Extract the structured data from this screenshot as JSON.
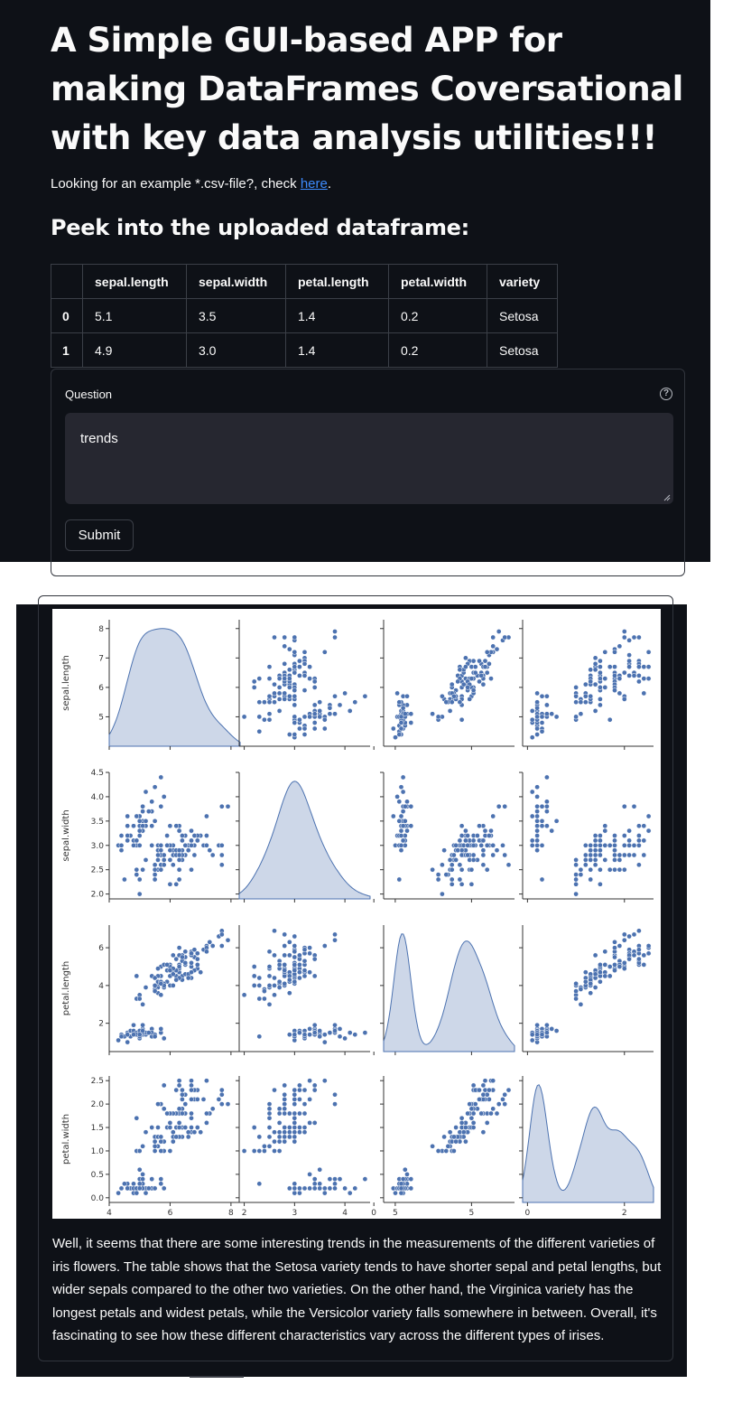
{
  "header": {
    "title": "A Simple GUI-based APP for making DataFrames Coversational with key data analysis utilities!!!",
    "example_text": "Looking for an example *.csv-file?, check ",
    "example_link": "here",
    "example_suffix": "."
  },
  "peek": {
    "heading": "Peek into the uploaded dataframe:",
    "columns": [
      "",
      "sepal.length",
      "sepal.width",
      "petal.length",
      "petal.width",
      "variety"
    ],
    "rows": [
      [
        "0",
        "5.1",
        "3.5",
        "1.4",
        "0.2",
        "Setosa"
      ],
      [
        "1",
        "4.9",
        "3.0",
        "1.4",
        "0.2",
        "Setosa"
      ]
    ]
  },
  "form": {
    "label": "Question",
    "help_icon": "question-circle-icon",
    "input_value": "trends",
    "submit_label": "Submit"
  },
  "answer": {
    "text": "Well, it seems that there are some interesting trends in the measurements of the different varieties of iris flowers. The table shows that the Setosa variety tends to have shorter sepal and petal lengths, but wider sepals compared to the other two varieties. On the other hand, the Virginica variety has the longest petals and widest petals, while the Versicolor variety falls somewhere in between. Overall, it's fascinating to see how these different characteristics vary across the different types of irises."
  },
  "colors": {
    "background": "#0e1117",
    "marker": "#4c72b0",
    "kde_fill": "#c8d3e6",
    "link": "#3d8bfd"
  },
  "chart_data": {
    "type": "scatter",
    "subtype": "pairplot",
    "variables": [
      "sepal.length",
      "sepal.width",
      "petal.length",
      "petal.width"
    ],
    "axis_labels": [
      "sepal.length",
      "sepal.width",
      "petal.length",
      "petal.width"
    ],
    "diagonal": "kde",
    "grid": false,
    "limits": [
      [
        4,
        8.3
      ],
      [
        1.9,
        4.5
      ],
      [
        0.5,
        7.2
      ],
      [
        -0.1,
        2.6
      ]
    ],
    "x_ticks": [
      [
        4,
        6,
        8
      ],
      [
        2,
        3,
        4,
        5
      ],
      [
        0,
        5
      ],
      [
        0,
        2
      ]
    ],
    "y_ticks": [
      [
        5,
        6,
        7,
        8
      ],
      [
        2.0,
        2.5,
        3.0,
        3.5,
        4.0,
        4.5
      ],
      [
        2,
        4,
        6
      ],
      [
        0.0,
        0.5,
        1.0,
        1.5,
        2.0,
        2.5
      ]
    ],
    "data": [
      [
        5.1,
        3.5,
        1.4,
        0.2
      ],
      [
        4.9,
        3.0,
        1.4,
        0.2
      ],
      [
        4.7,
        3.2,
        1.3,
        0.2
      ],
      [
        4.6,
        3.1,
        1.5,
        0.2
      ],
      [
        5.0,
        3.6,
        1.4,
        0.2
      ],
      [
        5.4,
        3.9,
        1.7,
        0.4
      ],
      [
        4.6,
        3.4,
        1.4,
        0.3
      ],
      [
        5.0,
        3.4,
        1.5,
        0.2
      ],
      [
        4.4,
        2.9,
        1.4,
        0.2
      ],
      [
        4.9,
        3.1,
        1.5,
        0.1
      ],
      [
        5.4,
        3.7,
        1.5,
        0.2
      ],
      [
        4.8,
        3.4,
        1.6,
        0.2
      ],
      [
        4.8,
        3.0,
        1.4,
        0.1
      ],
      [
        4.3,
        3.0,
        1.1,
        0.1
      ],
      [
        5.8,
        4.0,
        1.2,
        0.2
      ],
      [
        5.7,
        4.4,
        1.5,
        0.4
      ],
      [
        5.4,
        3.9,
        1.3,
        0.4
      ],
      [
        5.1,
        3.5,
        1.4,
        0.3
      ],
      [
        5.7,
        3.8,
        1.7,
        0.3
      ],
      [
        5.1,
        3.8,
        1.5,
        0.3
      ],
      [
        5.4,
        3.4,
        1.7,
        0.2
      ],
      [
        5.1,
        3.7,
        1.5,
        0.4
      ],
      [
        4.6,
        3.6,
        1.0,
        0.2
      ],
      [
        5.1,
        3.3,
        1.7,
        0.5
      ],
      [
        4.8,
        3.4,
        1.9,
        0.2
      ],
      [
        5.0,
        3.0,
        1.6,
        0.2
      ],
      [
        5.0,
        3.4,
        1.6,
        0.4
      ],
      [
        5.2,
        3.5,
        1.5,
        0.2
      ],
      [
        5.2,
        3.4,
        1.4,
        0.2
      ],
      [
        4.7,
        3.2,
        1.6,
        0.2
      ],
      [
        4.8,
        3.1,
        1.6,
        0.2
      ],
      [
        5.4,
        3.4,
        1.5,
        0.4
      ],
      [
        5.2,
        4.1,
        1.5,
        0.1
      ],
      [
        5.5,
        4.2,
        1.4,
        0.2
      ],
      [
        4.9,
        3.1,
        1.5,
        0.2
      ],
      [
        5.0,
        3.2,
        1.2,
        0.2
      ],
      [
        5.5,
        3.5,
        1.3,
        0.2
      ],
      [
        4.9,
        3.6,
        1.4,
        0.1
      ],
      [
        4.4,
        3.0,
        1.3,
        0.2
      ],
      [
        5.1,
        3.4,
        1.5,
        0.2
      ],
      [
        5.0,
        3.5,
        1.3,
        0.3
      ],
      [
        4.5,
        2.3,
        1.3,
        0.3
      ],
      [
        4.4,
        3.2,
        1.3,
        0.2
      ],
      [
        5.0,
        3.5,
        1.6,
        0.6
      ],
      [
        5.1,
        3.8,
        1.9,
        0.4
      ],
      [
        4.8,
        3.0,
        1.4,
        0.3
      ],
      [
        5.1,
        3.8,
        1.6,
        0.2
      ],
      [
        4.6,
        3.2,
        1.4,
        0.2
      ],
      [
        5.3,
        3.7,
        1.5,
        0.2
      ],
      [
        5.0,
        3.3,
        1.4,
        0.2
      ],
      [
        7.0,
        3.2,
        4.7,
        1.4
      ],
      [
        6.4,
        3.2,
        4.5,
        1.5
      ],
      [
        6.9,
        3.1,
        4.9,
        1.5
      ],
      [
        5.5,
        2.3,
        4.0,
        1.3
      ],
      [
        6.5,
        2.8,
        4.6,
        1.5
      ],
      [
        5.7,
        2.8,
        4.5,
        1.3
      ],
      [
        6.3,
        3.3,
        4.7,
        1.6
      ],
      [
        4.9,
        2.4,
        3.3,
        1.0
      ],
      [
        6.6,
        2.9,
        4.6,
        1.3
      ],
      [
        5.2,
        2.7,
        3.9,
        1.4
      ],
      [
        5.0,
        2.0,
        3.5,
        1.0
      ],
      [
        5.9,
        3.0,
        4.2,
        1.5
      ],
      [
        6.0,
        2.2,
        4.0,
        1.0
      ],
      [
        6.1,
        2.9,
        4.7,
        1.4
      ],
      [
        5.6,
        2.9,
        3.6,
        1.3
      ],
      [
        6.7,
        3.1,
        4.4,
        1.4
      ],
      [
        5.6,
        3.0,
        4.5,
        1.5
      ],
      [
        5.8,
        2.7,
        4.1,
        1.0
      ],
      [
        6.2,
        2.2,
        4.5,
        1.5
      ],
      [
        5.6,
        2.5,
        3.9,
        1.1
      ],
      [
        5.9,
        3.2,
        4.8,
        1.8
      ],
      [
        6.1,
        2.8,
        4.0,
        1.3
      ],
      [
        6.3,
        2.5,
        4.9,
        1.5
      ],
      [
        6.1,
        2.8,
        4.7,
        1.2
      ],
      [
        6.4,
        2.9,
        4.3,
        1.3
      ],
      [
        6.6,
        3.0,
        4.4,
        1.4
      ],
      [
        6.8,
        2.8,
        4.8,
        1.4
      ],
      [
        6.7,
        3.0,
        5.0,
        1.7
      ],
      [
        6.0,
        2.9,
        4.5,
        1.5
      ],
      [
        5.7,
        2.6,
        3.5,
        1.0
      ],
      [
        5.5,
        2.4,
        3.8,
        1.1
      ],
      [
        5.5,
        2.4,
        3.7,
        1.0
      ],
      [
        5.8,
        2.7,
        3.9,
        1.2
      ],
      [
        6.0,
        2.7,
        5.1,
        1.6
      ],
      [
        5.4,
        3.0,
        4.5,
        1.5
      ],
      [
        6.0,
        3.4,
        4.5,
        1.6
      ],
      [
        6.7,
        3.1,
        4.7,
        1.5
      ],
      [
        6.3,
        2.3,
        4.4,
        1.3
      ],
      [
        5.6,
        3.0,
        4.1,
        1.3
      ],
      [
        5.5,
        2.5,
        4.0,
        1.3
      ],
      [
        5.5,
        2.6,
        4.4,
        1.2
      ],
      [
        6.1,
        3.0,
        4.6,
        1.4
      ],
      [
        5.8,
        2.6,
        4.0,
        1.2
      ],
      [
        5.0,
        2.3,
        3.3,
        1.0
      ],
      [
        5.6,
        2.7,
        4.2,
        1.3
      ],
      [
        5.7,
        3.0,
        4.2,
        1.2
      ],
      [
        5.7,
        2.9,
        4.2,
        1.3
      ],
      [
        6.2,
        2.9,
        4.3,
        1.3
      ],
      [
        5.1,
        2.5,
        3.0,
        1.1
      ],
      [
        5.7,
        2.8,
        4.1,
        1.3
      ],
      [
        6.3,
        3.3,
        6.0,
        2.5
      ],
      [
        5.8,
        2.7,
        5.1,
        1.9
      ],
      [
        7.1,
        3.0,
        5.9,
        2.1
      ],
      [
        6.3,
        2.9,
        5.6,
        1.8
      ],
      [
        6.5,
        3.0,
        5.8,
        2.2
      ],
      [
        7.6,
        3.0,
        6.6,
        2.1
      ],
      [
        4.9,
        2.5,
        4.5,
        1.7
      ],
      [
        7.3,
        2.9,
        6.3,
        1.8
      ],
      [
        6.7,
        2.5,
        5.8,
        1.8
      ],
      [
        7.2,
        3.6,
        6.1,
        2.5
      ],
      [
        6.5,
        3.2,
        5.1,
        2.0
      ],
      [
        6.4,
        2.7,
        5.3,
        1.9
      ],
      [
        6.8,
        3.0,
        5.5,
        2.1
      ],
      [
        5.7,
        2.5,
        5.0,
        2.0
      ],
      [
        5.8,
        2.8,
        5.1,
        2.4
      ],
      [
        6.4,
        3.2,
        5.3,
        2.3
      ],
      [
        6.5,
        3.0,
        5.5,
        1.8
      ],
      [
        7.7,
        3.8,
        6.7,
        2.2
      ],
      [
        7.7,
        2.6,
        6.9,
        2.3
      ],
      [
        6.0,
        2.2,
        5.0,
        1.5
      ],
      [
        6.9,
        3.2,
        5.7,
        2.3
      ],
      [
        5.6,
        2.8,
        4.9,
        2.0
      ],
      [
        7.7,
        2.8,
        6.7,
        2.0
      ],
      [
        6.3,
        2.7,
        4.9,
        1.8
      ],
      [
        6.7,
        3.3,
        5.7,
        2.1
      ],
      [
        7.2,
        3.2,
        6.0,
        1.8
      ],
      [
        6.2,
        2.8,
        4.8,
        1.8
      ],
      [
        6.1,
        3.0,
        4.9,
        1.8
      ],
      [
        6.4,
        2.8,
        5.6,
        2.1
      ],
      [
        7.2,
        3.0,
        5.8,
        1.6
      ],
      [
        7.4,
        2.8,
        6.1,
        1.9
      ],
      [
        7.9,
        3.8,
        6.4,
        2.0
      ],
      [
        6.4,
        2.8,
        5.6,
        2.2
      ],
      [
        6.3,
        2.8,
        5.1,
        1.5
      ],
      [
        6.1,
        2.6,
        5.6,
        1.4
      ],
      [
        7.7,
        3.0,
        6.1,
        2.3
      ],
      [
        6.3,
        3.4,
        5.6,
        2.4
      ],
      [
        6.4,
        3.1,
        5.5,
        1.8
      ],
      [
        6.0,
        3.0,
        4.8,
        1.8
      ],
      [
        6.9,
        3.1,
        5.4,
        2.1
      ],
      [
        6.7,
        3.1,
        5.6,
        2.4
      ],
      [
        6.9,
        3.1,
        5.1,
        2.3
      ],
      [
        5.8,
        2.7,
        5.1,
        1.9
      ],
      [
        6.8,
        3.2,
        5.9,
        2.3
      ],
      [
        6.7,
        3.3,
        5.7,
        2.5
      ],
      [
        6.7,
        3.0,
        5.2,
        2.3
      ],
      [
        6.3,
        2.5,
        5.0,
        1.9
      ],
      [
        6.5,
        3.0,
        5.2,
        2.0
      ],
      [
        6.2,
        3.4,
        5.4,
        2.3
      ],
      [
        5.9,
        3.0,
        5.1,
        1.8
      ]
    ]
  }
}
